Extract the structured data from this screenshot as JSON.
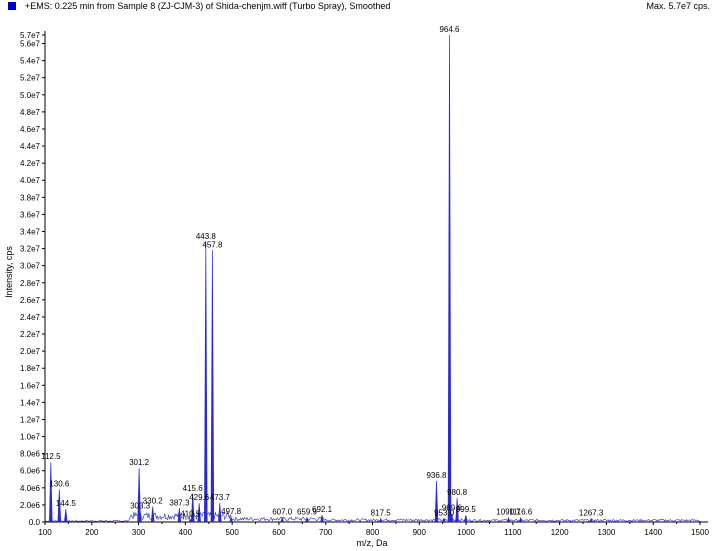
{
  "header": {
    "title": "+EMS: 0.225 min from Sample 8 (ZJ-CJM-3) of Shida-chenjm.wiff (Turbo Spray), Smoothed",
    "max_label": "Max. 5.7e7 cps."
  },
  "colors": {
    "trace": "#2a2acd",
    "legend": "#0000cc",
    "axis": "#000000"
  },
  "chart_data": {
    "type": "line",
    "xlabel": "m/z, Da",
    "ylabel": "Intensity, cps",
    "xlim": [
      100,
      1500
    ],
    "ylim": [
      0,
      57000000
    ],
    "x_ticks": [
      100,
      200,
      300,
      400,
      500,
      600,
      700,
      800,
      900,
      1000,
      1100,
      1200,
      1300,
      1400,
      1500
    ],
    "x_tick_labels": [
      "100",
      "200",
      "300",
      "400",
      "500",
      "600",
      "700",
      "800",
      "900",
      "1000",
      "1100",
      "1200",
      "1300",
      "1400",
      "1500"
    ],
    "y_ticks": [
      0,
      2000000,
      4000000,
      6000000,
      8000000,
      10000000,
      12000000,
      14000000,
      16000000,
      18000000,
      20000000,
      22000000,
      24000000,
      26000000,
      28000000,
      30000000,
      32000000,
      34000000,
      36000000,
      38000000,
      40000000,
      42000000,
      44000000,
      46000000,
      48000000,
      50000000,
      52000000,
      54000000,
      56000000,
      57000000
    ],
    "y_tick_labels": [
      "0.0",
      "2.0e6",
      "4.0e6",
      "6.0e6",
      "8.0e6",
      "1.0e7",
      "1.2e7",
      "1.4e7",
      "1.6e7",
      "1.8e7",
      "2.0e7",
      "2.2e7",
      "2.4e7",
      "2.6e7",
      "2.8e7",
      "3.0e7",
      "3.2e7",
      "3.4e7",
      "3.6e7",
      "3.8e7",
      "4.0e7",
      "4.2e7",
      "4.4e7",
      "4.6e7",
      "4.8e7",
      "5.0e7",
      "5.2e7",
      "5.4e7",
      "5.6e7",
      "5.7e7"
    ],
    "peaks": [
      {
        "mz": 112.5,
        "intensity": 7000000,
        "label": "112.5"
      },
      {
        "mz": 130.6,
        "intensity": 3800000,
        "label": "130.6"
      },
      {
        "mz": 144.5,
        "intensity": 1500000,
        "label": "144.5"
      },
      {
        "mz": 301.2,
        "intensity": 6300000,
        "label": "301.2"
      },
      {
        "mz": 303.3,
        "intensity": 1200000,
        "label": "303.3"
      },
      {
        "mz": 330.2,
        "intensity": 1800000,
        "label": "330.2"
      },
      {
        "mz": 387.3,
        "intensity": 1600000,
        "label": "387.3"
      },
      {
        "mz": 410.5,
        "intensity": 300000,
        "label": "410.5"
      },
      {
        "mz": 415.6,
        "intensity": 3300000,
        "label": "415.6"
      },
      {
        "mz": 429.6,
        "intensity": 2200000,
        "label": "429.6"
      },
      {
        "mz": 443.8,
        "intensity": 32800000,
        "label": "443.8"
      },
      {
        "mz": 457.8,
        "intensity": 31800000,
        "label": "457.8"
      },
      {
        "mz": 473.7,
        "intensity": 2200000,
        "label": "473.7"
      },
      {
        "mz": 497.8,
        "intensity": 600000,
        "label": "497.8"
      },
      {
        "mz": 607.0,
        "intensity": 500000,
        "label": "607.0"
      },
      {
        "mz": 659.9,
        "intensity": 500000,
        "label": "659.9"
      },
      {
        "mz": 692.1,
        "intensity": 800000,
        "label": "692.1"
      },
      {
        "mz": 817.5,
        "intensity": 400000,
        "label": "817.5"
      },
      {
        "mz": 936.8,
        "intensity": 4800000,
        "label": "936.8"
      },
      {
        "mz": 953.0,
        "intensity": 400000,
        "label": "953.0"
      },
      {
        "mz": 964.6,
        "intensity": 57000000,
        "label": "964.6"
      },
      {
        "mz": 969.6,
        "intensity": 1000000,
        "label": "969.6"
      },
      {
        "mz": 980.8,
        "intensity": 2800000,
        "label": "980.8"
      },
      {
        "mz": 999.5,
        "intensity": 800000,
        "label": "999.5"
      },
      {
        "mz": 1090.7,
        "intensity": 500000,
        "label": "1090.7"
      },
      {
        "mz": 1116.6,
        "intensity": 500000,
        "label": "1116.6"
      },
      {
        "mz": 1267.3,
        "intensity": 400000,
        "label": "1267.3"
      }
    ],
    "grid": false,
    "legend": "top-left"
  }
}
